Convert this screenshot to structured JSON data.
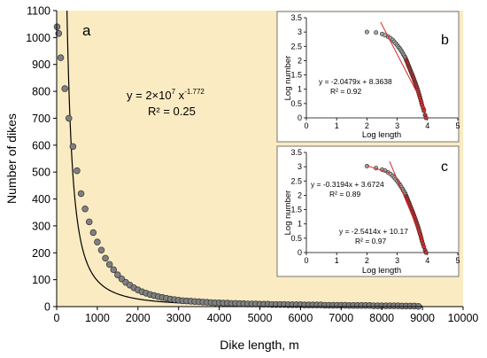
{
  "chart_data": [
    {
      "id": "a",
      "type": "scatter",
      "panel_label": "a",
      "xlabel": "Dike length, m",
      "ylabel": "Number of dikes",
      "xlim": [
        0,
        10000
      ],
      "ylim": [
        0,
        1100
      ],
      "x_ticks": [
        0,
        1000,
        2000,
        3000,
        4000,
        5000,
        6000,
        7000,
        8000,
        9000,
        10000
      ],
      "y_ticks": [
        0,
        100,
        200,
        300,
        400,
        500,
        600,
        700,
        800,
        900,
        1000,
        1100
      ],
      "background": "#FAEBC3",
      "marker_color": "#808080",
      "equation": {
        "lead": "y = 2×10",
        "exp1": "7",
        "mid": " x",
        "exp2": "-1.772"
      },
      "r2": "R² = 0.25",
      "fit": {
        "a": 20000000,
        "b": -1.772,
        "color": "#000000"
      },
      "series": [
        {
          "x": [
            10,
            50,
            100,
            200,
            300,
            400,
            500,
            600,
            700,
            800,
            900,
            1000,
            1100,
            1200,
            1300,
            1400,
            1500,
            1600,
            1700,
            1800,
            1900,
            2000,
            2100,
            2200,
            2300,
            2400,
            2500,
            2600,
            2700,
            2800,
            2900,
            3000,
            3100,
            3200,
            3300,
            3400,
            3500,
            3600,
            3700,
            3800,
            3900,
            4000,
            4100,
            4200,
            4300,
            4400,
            4500,
            4600,
            4700,
            4800,
            4900,
            5000,
            5100,
            5200,
            5300,
            5400,
            5500,
            5600,
            5700,
            5800,
            5900,
            6000,
            6100,
            6200,
            6300,
            6400,
            6500,
            6600,
            6700,
            6800,
            6900,
            7000,
            7100,
            7200,
            7300,
            7400,
            7500,
            7600,
            7700,
            7800,
            7900,
            8000,
            8100,
            8200,
            8300,
            8400,
            8500,
            8600,
            8700,
            8800,
            8900
          ],
          "y": [
            1040,
            1015,
            925,
            810,
            700,
            595,
            505,
            420,
            363,
            315,
            275,
            240,
            210,
            180,
            157,
            137,
            118,
            103,
            90,
            80,
            70,
            62,
            55,
            50,
            45,
            41,
            37,
            34,
            31,
            28,
            26,
            24,
            22,
            21,
            20,
            19,
            18,
            17,
            16,
            15,
            14,
            14,
            13,
            13,
            12,
            12,
            11,
            11,
            10,
            10,
            10,
            9,
            9,
            9,
            8,
            8,
            8,
            8,
            7,
            7,
            7,
            7,
            6,
            6,
            6,
            6,
            6,
            5,
            5,
            5,
            5,
            5,
            5,
            4,
            4,
            4,
            4,
            4,
            4,
            3,
            3,
            3,
            3,
            3,
            3,
            3,
            2,
            2,
            2,
            2,
            1
          ]
        }
      ]
    },
    {
      "id": "b",
      "type": "scatter",
      "panel_label": "b",
      "xlabel": "Log length",
      "ylabel": "Log number",
      "xlim": [
        0,
        5
      ],
      "ylim": [
        0,
        3.5
      ],
      "x_ticks": [
        0,
        1,
        2,
        3,
        4,
        5
      ],
      "y_ticks": [
        0,
        0.5,
        1,
        1.5,
        2,
        2.5,
        3,
        3.5
      ],
      "y_tick_labels": [
        "0",
        "0.5",
        "1",
        "1.5",
        "2",
        "2.5",
        "3",
        "3.5"
      ],
      "marker_color": "#808080",
      "highlight_color": "#CC3333",
      "annotations": [
        {
          "eq": "y = -2.0479x + 8.3638",
          "r2": "R² = 0.92"
        }
      ],
      "fit_lines": [
        {
          "slope": -2.0479,
          "intercept": 8.3638,
          "x_range": [
            2.45,
            3.95
          ],
          "color": "#E02020"
        }
      ],
      "series": [
        {
          "x": [
            2.0,
            2.3,
            2.5,
            2.6,
            2.7,
            2.78,
            2.85,
            2.9,
            2.95,
            3.0,
            3.04,
            3.08,
            3.11,
            3.15,
            3.18,
            3.2,
            3.23,
            3.26,
            3.28,
            3.3,
            3.32,
            3.34,
            3.36,
            3.38,
            3.4,
            3.42,
            3.44,
            3.46,
            3.48,
            3.5,
            3.52,
            3.54,
            3.56,
            3.58,
            3.6,
            3.62,
            3.64,
            3.66,
            3.68,
            3.7,
            3.72,
            3.74,
            3.76,
            3.78,
            3.8,
            3.82,
            3.85,
            3.88,
            3.92,
            3.95
          ],
          "y": [
            3.0,
            2.98,
            2.93,
            2.89,
            2.84,
            2.78,
            2.72,
            2.66,
            2.6,
            2.54,
            2.48,
            2.43,
            2.38,
            2.32,
            2.27,
            2.22,
            2.17,
            2.12,
            2.07,
            2.02,
            1.97,
            1.92,
            1.86,
            1.81,
            1.76,
            1.71,
            1.65,
            1.6,
            1.55,
            1.5,
            1.44,
            1.39,
            1.33,
            1.27,
            1.22,
            1.16,
            1.1,
            1.04,
            0.97,
            0.9,
            0.83,
            0.76,
            0.69,
            0.61,
            0.53,
            0.45,
            0.35,
            0.25,
            0.1,
            0.0
          ]
        }
      ]
    },
    {
      "id": "c",
      "type": "scatter",
      "panel_label": "c",
      "xlabel": "Log length",
      "ylabel": "Log number",
      "xlim": [
        0,
        5
      ],
      "ylim": [
        0,
        3.5
      ],
      "x_ticks": [
        0,
        1,
        2,
        3,
        4,
        5
      ],
      "y_ticks": [
        0,
        0.5,
        1,
        1.5,
        2,
        2.5,
        3,
        3.5
      ],
      "y_tick_labels": [
        "0",
        "0.5",
        "1",
        "1.5",
        "2",
        "2.5",
        "3",
        "3.5"
      ],
      "marker_color": "#808080",
      "highlight_color": "#CC3333",
      "annotations": [
        {
          "eq": "y = -0.3194x + 3.6724",
          "r2": "R² = 0.89"
        },
        {
          "eq": "y = -2.5414x + 10.17",
          "r2": "R² = 0.97"
        }
      ],
      "fit_lines": [
        {
          "slope": -0.3194,
          "intercept": 3.6724,
          "x_range": [
            2.0,
            2.75
          ],
          "color": "#E02020"
        },
        {
          "slope": -2.5414,
          "intercept": 10.17,
          "x_range": [
            2.75,
            3.95
          ],
          "color": "#E02020"
        }
      ],
      "series": [
        {
          "x": [
            2.0,
            2.3,
            2.5,
            2.6,
            2.7,
            2.78,
            2.85,
            2.9,
            2.95,
            3.0,
            3.04,
            3.08,
            3.11,
            3.15,
            3.18,
            3.2,
            3.23,
            3.26,
            3.28,
            3.3,
            3.32,
            3.34,
            3.36,
            3.38,
            3.4,
            3.42,
            3.44,
            3.46,
            3.48,
            3.5,
            3.52,
            3.54,
            3.56,
            3.58,
            3.6,
            3.62,
            3.64,
            3.66,
            3.68,
            3.7,
            3.72,
            3.74,
            3.76,
            3.78,
            3.8,
            3.82,
            3.85,
            3.88,
            3.92,
            3.95
          ],
          "y": [
            3.02,
            2.95,
            2.9,
            2.86,
            2.8,
            2.74,
            2.68,
            2.62,
            2.56,
            2.5,
            2.44,
            2.38,
            2.33,
            2.27,
            2.22,
            2.17,
            2.12,
            2.07,
            2.02,
            1.97,
            1.92,
            1.87,
            1.81,
            1.76,
            1.71,
            1.66,
            1.6,
            1.55,
            1.5,
            1.44,
            1.39,
            1.33,
            1.28,
            1.22,
            1.16,
            1.1,
            1.04,
            0.98,
            0.92,
            0.85,
            0.78,
            0.71,
            0.64,
            0.56,
            0.48,
            0.4,
            0.3,
            0.2,
            0.08,
            0.0
          ]
        }
      ]
    }
  ]
}
